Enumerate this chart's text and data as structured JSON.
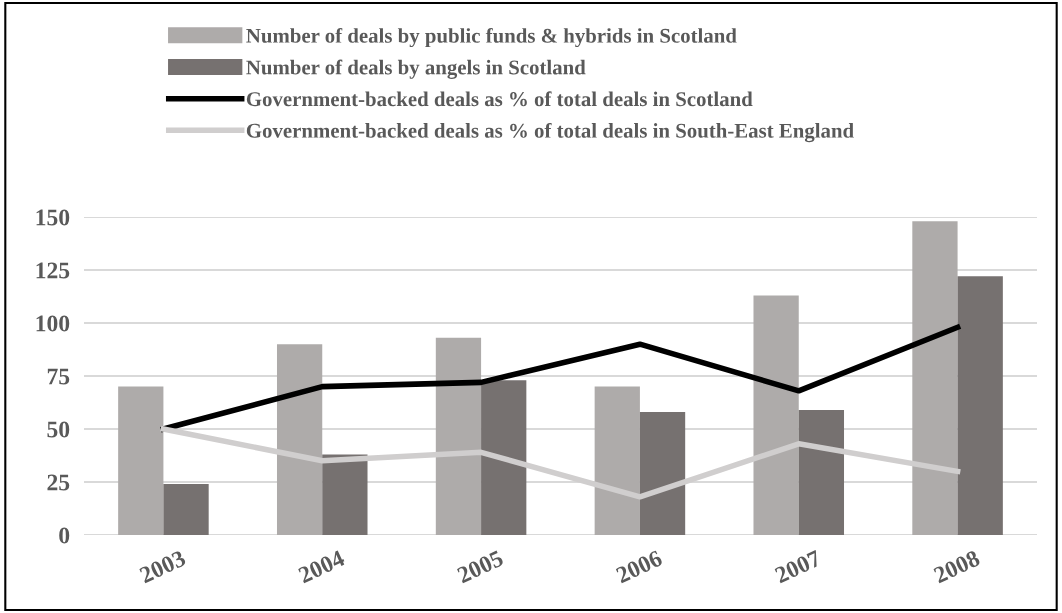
{
  "chart_data": {
    "type": "bar",
    "categories": [
      "2003",
      "2004",
      "2005",
      "2006",
      "2007",
      "2008"
    ],
    "series": [
      {
        "name": "Number of deals by public funds & hybrids in Scotland",
        "color": "#aeabaa",
        "values": [
          70,
          90,
          93,
          70,
          113,
          148
        ]
      },
      {
        "name": "Number of deals by angels in Scotland",
        "color": "#767170",
        "values": [
          24,
          38,
          73,
          58,
          59,
          122
        ]
      },
      {
        "name": "Government-backed deals as % of total deals in Scotland",
        "type": "line",
        "color": "#000000",
        "values": [
          50,
          70,
          72,
          90,
          68,
          98
        ]
      },
      {
        "name": "Government-backed deals as % of total deals in South-East England",
        "type": "line",
        "color": "#d0cece",
        "values": [
          50,
          35,
          39,
          18,
          43,
          30
        ]
      }
    ],
    "ylim": [
      0,
      150
    ],
    "yticks": [
      0,
      25,
      50,
      75,
      100,
      125,
      150
    ],
    "grid": "y",
    "legend": "top",
    "marker": "none",
    "line_style": "solid"
  }
}
